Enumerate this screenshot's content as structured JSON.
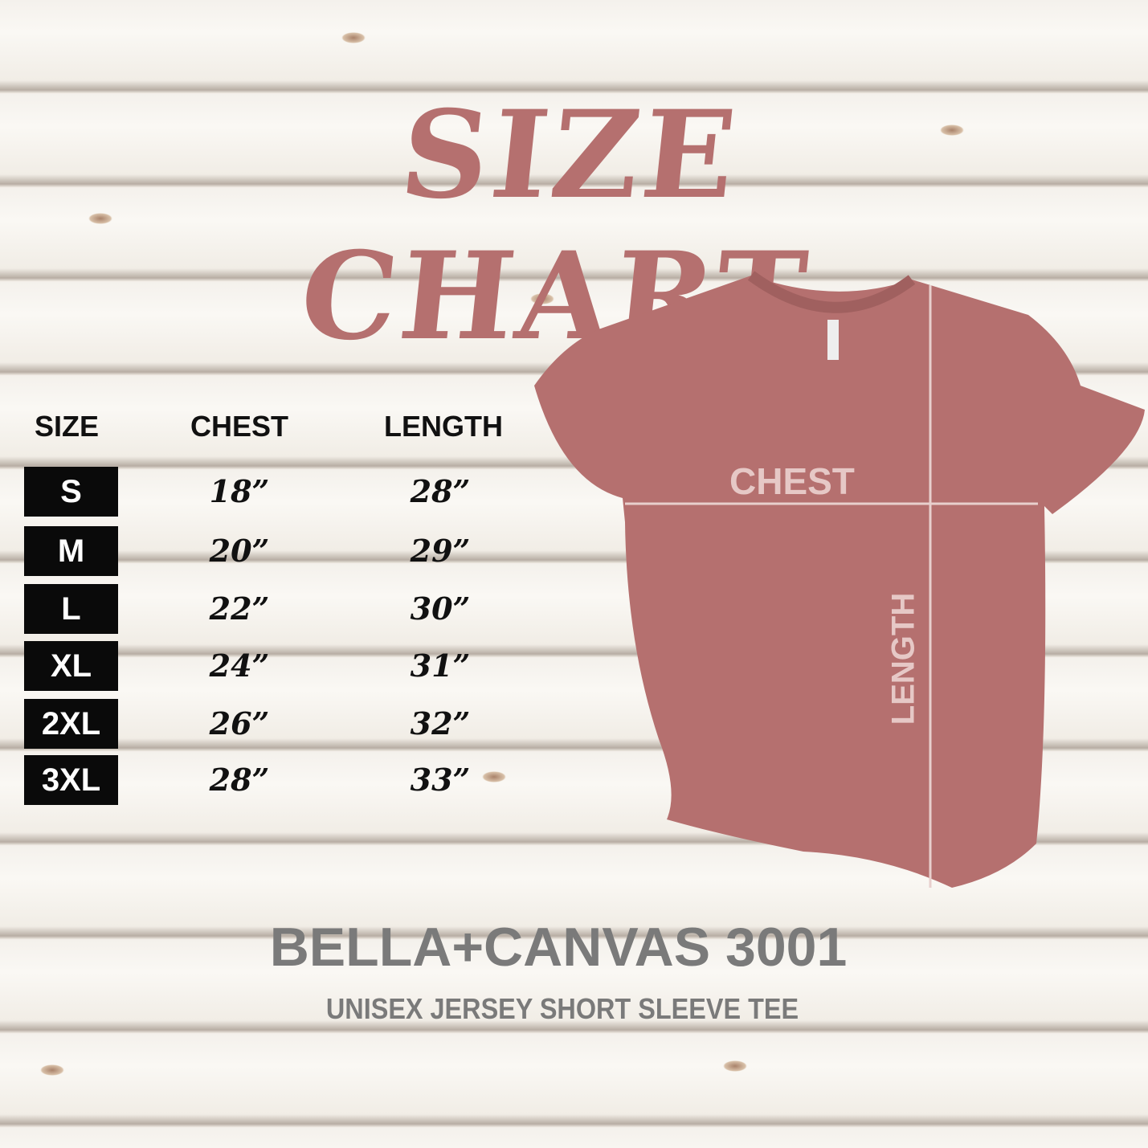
{
  "title": "SIZE CHART",
  "table": {
    "headers": [
      "SIZE",
      "CHEST",
      "LENGTH"
    ],
    "rows": [
      {
        "size": "S",
        "chest": "18”",
        "length": "28”"
      },
      {
        "size": "M",
        "chest": "20”",
        "length": "29”"
      },
      {
        "size": "L",
        "chest": "22”",
        "length": "30”"
      },
      {
        "size": "XL",
        "chest": "24”",
        "length": "31”"
      },
      {
        "size": "2XL",
        "chest": "26”",
        "length": "32”"
      },
      {
        "size": "3XL",
        "chest": "28”",
        "length": "33”"
      }
    ]
  },
  "shirt": {
    "chest_label": "CHEST",
    "length_label": "LENGTH",
    "color": "#b5706f"
  },
  "product": {
    "name": "BELLA+CANVAS 3001",
    "description": "UNISEX JERSEY SHORT SLEEVE TEE"
  },
  "colors": {
    "title": "#b5706f",
    "size_box": "#0a0a0a",
    "brand_text": "#7a7a7a"
  }
}
